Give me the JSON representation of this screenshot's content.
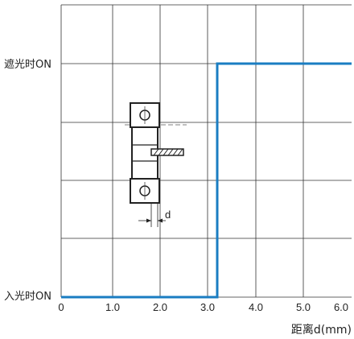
{
  "chart_data": {
    "type": "line",
    "title": "",
    "xlabel": "距离d(mm)",
    "ylabel": "",
    "xlim": [
      0,
      6.0
    ],
    "x_ticks": [
      "0",
      "1.0",
      "2.0",
      "3.0",
      "4.0",
      "5.0",
      "6.0"
    ],
    "y_levels": [
      "入光时ON",
      "遮光时ON"
    ],
    "grid": true,
    "series": [
      {
        "color": "#1a7dc2",
        "points": [
          {
            "x": 0,
            "y": "入光时ON"
          },
          {
            "x": 3.2,
            "y": "入光时ON"
          },
          {
            "x": 3.2,
            "y": "遮光时ON"
          },
          {
            "x": 6.0,
            "y": "遮光时ON"
          }
        ]
      }
    ],
    "diagram": {
      "dimension_label": "d"
    }
  }
}
